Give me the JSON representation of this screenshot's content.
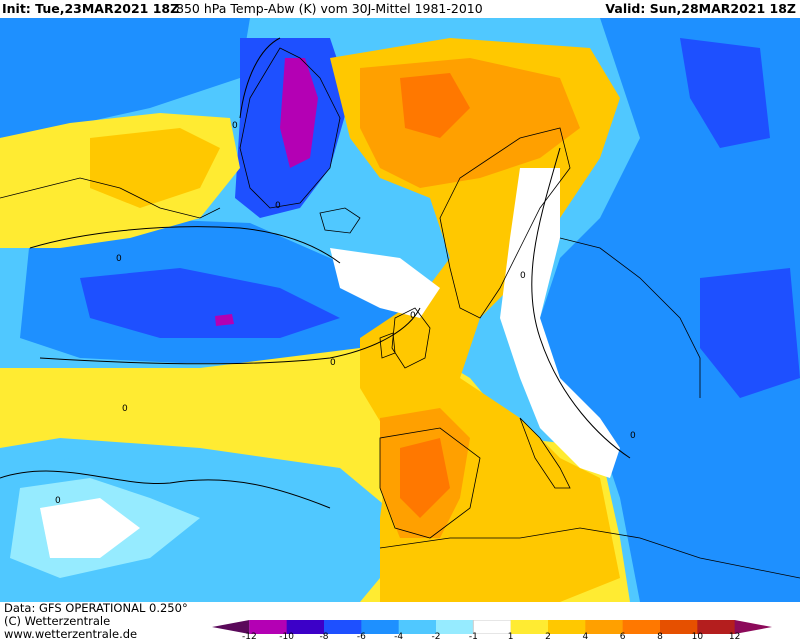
{
  "header": {
    "init": "Init: Tue,23MAR2021 18Z",
    "title": "850 hPa Temp-Abw (K) vom 30J-Mittel 1981-2010",
    "valid": "Valid: Sun,28MAR2021 18Z"
  },
  "footer": {
    "data_line": "Data: GFS OPERATIONAL 0.250°",
    "copyright": "(C) Wetterzentrale",
    "url": "www.wetterzentrale.de"
  },
  "colorbar": {
    "ticks": [
      "-12",
      "-10",
      "-8",
      "-6",
      "-4",
      "-2",
      "-1",
      "1",
      "2",
      "4",
      "6",
      "8",
      "10",
      "12"
    ],
    "colors": [
      "#5a0a5a",
      "#b400b4",
      "#3c00c8",
      "#1e50ff",
      "#1e90ff",
      "#50c8ff",
      "#96ebff",
      "#ffffff",
      "#ffeb32",
      "#ffc800",
      "#ffa000",
      "#ff7800",
      "#e65000",
      "#b41e1e",
      "#8c0a5a"
    ]
  },
  "map": {
    "contour_label": "0",
    "colors": {
      "ocean_blue": "#1e90ff",
      "deep_blue": "#1e50ff",
      "violet": "#b400b4",
      "cyan": "#50c8ff",
      "light_cyan": "#96ebff",
      "neutral": "#ffffff",
      "yellow": "#ffeb32",
      "gold": "#ffc800",
      "orange": "#ffa000",
      "dark_orange": "#ff7800"
    }
  }
}
